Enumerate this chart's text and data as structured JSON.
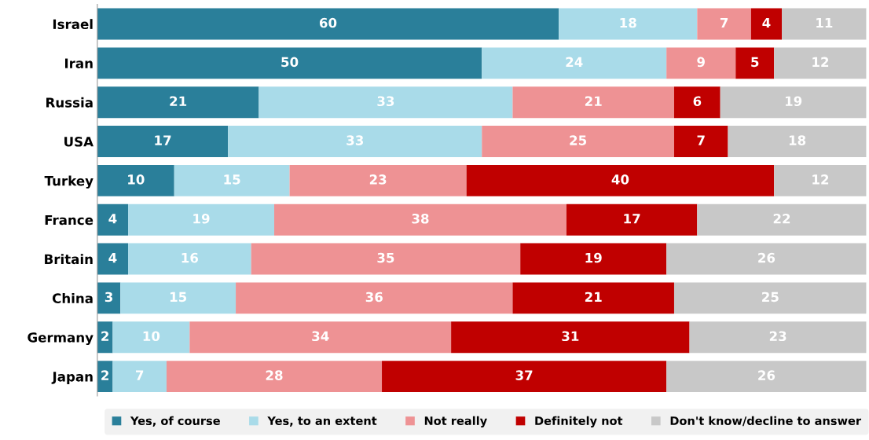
{
  "chart_data": {
    "type": "bar",
    "orientation": "horizontal",
    "stacked": true,
    "data_labels": true,
    "legend": "bottom",
    "grid": false,
    "tick_labels": "y",
    "xlim": [
      0,
      100
    ],
    "categories": [
      "Israel",
      "Iran",
      "Russia",
      "USA",
      "Turkey",
      "France",
      "Britain",
      "China",
      "Germany",
      "Japan"
    ],
    "series": [
      {
        "name": "Yes, of course",
        "color": "#2a7f9a",
        "values": [
          60,
          50,
          21,
          17,
          10,
          4,
          4,
          3,
          2,
          2
        ]
      },
      {
        "name": "Yes, to an extent",
        "color": "#a9dbe9",
        "values": [
          18,
          24,
          33,
          33,
          15,
          19,
          16,
          15,
          10,
          7
        ]
      },
      {
        "name": "Not really",
        "color": "#ee9294",
        "values": [
          7,
          9,
          21,
          25,
          23,
          38,
          35,
          36,
          34,
          28
        ]
      },
      {
        "name": "Definitely not",
        "color": "#c00000",
        "values": [
          4,
          5,
          6,
          7,
          40,
          17,
          19,
          21,
          31,
          37
        ]
      },
      {
        "name": "Don't know/decline to answer",
        "color": "#c8c8c8",
        "values": [
          11,
          12,
          19,
          18,
          12,
          22,
          26,
          25,
          23,
          26
        ]
      }
    ]
  }
}
